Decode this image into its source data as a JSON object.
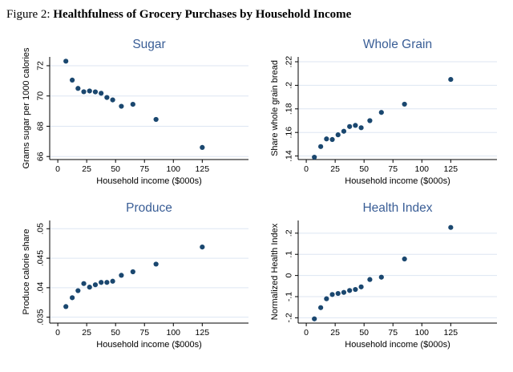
{
  "figure": {
    "label": "Figure 2:",
    "title": "Healthfulness of Grocery Purchases by Household Income"
  },
  "colors": {
    "dot": "#1a476f",
    "panel_title": "#3a5e96",
    "gridline": "#dde6f2",
    "axis": "#000000",
    "background": "#ffffff"
  },
  "x_axis": {
    "title": "Household income ($000s)",
    "ticks": [
      0,
      25,
      50,
      75,
      100,
      125
    ],
    "lim": [
      -7,
      165
    ]
  },
  "chart_data": [
    {
      "type": "scatter",
      "title": "Sugar",
      "xlabel": "Household income ($000s)",
      "ylabel": "Grams sugar per 1000 calories",
      "yticks": [
        66,
        68,
        70,
        72
      ],
      "ytick_labels": [
        "66",
        "68",
        "70",
        "72"
      ],
      "ylim": [
        65.8,
        72.58
      ],
      "grid": true,
      "x": [
        7,
        12.5,
        17.5,
        22.5,
        27.5,
        32.5,
        37.5,
        42.5,
        47.5,
        55,
        65,
        85,
        125
      ],
      "y": [
        72.3,
        71.05,
        70.5,
        70.28,
        70.33,
        70.27,
        70.18,
        69.9,
        69.74,
        69.32,
        69.45,
        68.45,
        66.6
      ]
    },
    {
      "type": "scatter",
      "title": "Whole Grain",
      "xlabel": "Household income ($000s)",
      "ylabel": "Share whole grain bread",
      "yticks": [
        0.14,
        0.16,
        0.18,
        0.2,
        0.22
      ],
      "ytick_labels": [
        ".14",
        ".16",
        ".18",
        ".2",
        ".22"
      ],
      "ylim": [
        0.137,
        0.2241
      ],
      "grid": true,
      "x": [
        7,
        12.5,
        17.5,
        22.5,
        27.5,
        32.5,
        37.5,
        42.5,
        47.5,
        55,
        65,
        85,
        125
      ],
      "y": [
        0.139,
        0.148,
        0.1545,
        0.154,
        0.158,
        0.161,
        0.165,
        0.166,
        0.164,
        0.17,
        0.177,
        0.184,
        0.205
      ]
    },
    {
      "type": "scatter",
      "title": "Produce",
      "xlabel": "Household income ($000s)",
      "ylabel": "Produce calorie share",
      "yticks": [
        0.035,
        0.04,
        0.045,
        0.05
      ],
      "ytick_labels": [
        ".035",
        ".04",
        ".045",
        ".05"
      ],
      "ylim": [
        0.034,
        0.0514
      ],
      "grid": true,
      "x": [
        7,
        12.5,
        17.5,
        22.5,
        27.5,
        32.5,
        37.5,
        42.5,
        47.5,
        55,
        65,
        85,
        125
      ],
      "y": [
        0.0368,
        0.0383,
        0.0395,
        0.0407,
        0.0401,
        0.0405,
        0.0409,
        0.0409,
        0.0411,
        0.0421,
        0.0427,
        0.044,
        0.0469
      ]
    },
    {
      "type": "scatter",
      "title": "Health Index",
      "xlabel": "Household income ($000s)",
      "ylabel": "Normalized Health Index",
      "yticks": [
        -0.2,
        -0.1,
        0,
        0.1,
        0.2
      ],
      "ytick_labels": [
        "-.2",
        "-.1",
        "0",
        ".1",
        ".2"
      ],
      "ylim": [
        -0.225,
        0.26
      ],
      "grid": true,
      "x": [
        7,
        12.5,
        17.5,
        22.5,
        27.5,
        32.5,
        37.5,
        42.5,
        47.5,
        55,
        65,
        85,
        125
      ],
      "y": [
        -0.205,
        -0.152,
        -0.11,
        -0.09,
        -0.085,
        -0.08,
        -0.071,
        -0.066,
        -0.054,
        -0.019,
        -0.008,
        0.078,
        0.227
      ]
    }
  ]
}
